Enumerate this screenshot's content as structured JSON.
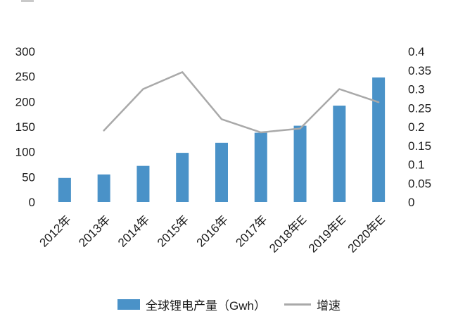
{
  "legend": {
    "bars_label": "全球锂电产量（Gwh）",
    "line_label": "增速"
  },
  "chart_data": {
    "type": "combo",
    "title": "",
    "categories": [
      "2012年",
      "2013年",
      "2014年",
      "2015年",
      "2016年",
      "2017年",
      "2018年E",
      "2019年E",
      "2020年E"
    ],
    "series": [
      {
        "name": "全球锂电产量（Gwh）",
        "type": "bar",
        "axis": "left",
        "color": "#4a92c8",
        "values": [
          48,
          55,
          72,
          98,
          118,
          138,
          152,
          192,
          248
        ]
      },
      {
        "name": "增速",
        "type": "line",
        "axis": "right",
        "color": "#a9a9a9",
        "values": [
          null,
          0.19,
          0.3,
          0.345,
          0.22,
          0.185,
          0.195,
          0.3,
          0.265
        ]
      }
    ],
    "left_axis": {
      "min": 0,
      "max": 300,
      "step": 50,
      "ticks": [
        "300",
        "250",
        "200",
        "150",
        "100",
        "50",
        "0"
      ]
    },
    "right_axis": {
      "min": 0,
      "max": 0.4,
      "step": 0.05,
      "ticks": [
        "0.4",
        "0.35",
        "0.3",
        "0.25",
        "0.2",
        "0.15",
        "0.1",
        "0.05",
        "0"
      ]
    },
    "grid": false,
    "legend_position": "bottom"
  }
}
